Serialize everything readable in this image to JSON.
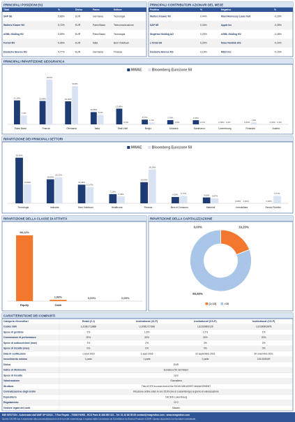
{
  "top_positions": {
    "title": "PRINCIPALI POSIZIONI (%)",
    "columns": [
      "Titoli",
      "%",
      "Divisa",
      "Paese",
      "Settore"
    ],
    "rows": [
      [
        "SAP SE",
        "5,86%",
        "EUR",
        "Germania",
        "Tecnologia"
      ],
      [
        "Wolters Kluwer NV",
        "5,72%",
        "EUR",
        "Paesi Bassi",
        "Telecomunicazione"
      ],
      [
        "ASML Holding NV",
        "5,59%",
        "EUR",
        "Paesi Bassi",
        "Tecnologia"
      ],
      [
        "Ferrari NV",
        "5,06%",
        "EUR",
        "Italia",
        "Beni Voluttuari"
      ],
      [
        "Deutsche Boerse AG",
        "4,77%",
        "EUR",
        "Germania",
        "Finanza"
      ]
    ]
  },
  "contributors": {
    "title": "PRINCIPALI CONTRIBUTORI AZIONARI DEL MESE",
    "columns": [
      "Positivo",
      "%",
      "Negativo",
      "%"
    ],
    "rows": [
      [
        "Wolters Kluwer NV",
        "0,44%",
        "Moet Hennessy Louis Vuit",
        "-0,29%"
      ],
      [
        "SAP SE",
        "0,33%",
        "Apple Inc",
        "-0,28%"
      ],
      [
        "Siegfried Holding AG",
        "0,20%",
        "ASML Holding NV",
        "-0,28%"
      ],
      [
        "L'Oréal SA",
        "0,20%",
        "Novo Nordisk A/S",
        "-0,20%"
      ],
      [
        "Deutsche Boerse AG",
        "0,19%",
        "MSCI Inc",
        "-0,15%"
      ]
    ]
  },
  "chart_data": [
    {
      "type": "bar",
      "title": "PRINCIPALI RIPARTIZIONE GEOGRAFICA",
      "categories": [
        "Paesi Bassi",
        "Francia",
        "Germania",
        "Italia",
        "Stati Uniti",
        "Belgio",
        "Svizzera",
        "Danimarca",
        "Luxembourg",
        "Finlandia",
        "Austria"
      ],
      "series": [
        {
          "name": "MWAE",
          "color": "#1f3b73",
          "values": [
            21.18,
            20.68,
            20.36,
            10.85,
            13.88,
            4.17,
            3.76,
            3.65,
            0,
            0,
            0
          ],
          "value_labels": [
            "21,18%",
            "20,68%",
            "20,36%",
            "10,85%",
            "13,88%",
            "4,17%",
            "3,76%",
            "3,65%",
            "0,00%",
            "0,00%",
            "0,00%"
          ]
        },
        {
          "name": "Bloomberg Eurozone 50",
          "color": "#dae3f3",
          "values": [
            7.9,
            39.5,
            33.8,
            8.4,
            0,
            1.7,
            0,
            0,
            0,
            1.8,
            0
          ],
          "value_labels": [
            "7,9%",
            "39,5%",
            "33,8%",
            "8,4%",
            "0,0%",
            "1,7%",
            "0,0%",
            "0,0%",
            "0,0%",
            "1,8%",
            "0,0%"
          ]
        }
      ],
      "ylim": [
        0,
        42
      ]
    },
    {
      "type": "bar",
      "title": "RIPARTIZIONE DEI PRINCIPALI SETTORI",
      "categories": [
        "Tecnologia",
        "Industria",
        "Beni Voluttuari",
        "Healthcare",
        "Finanza",
        "Beni di Consumo",
        "Materiali",
        "Immobiliare",
        "Servizi Pubblici"
      ],
      "series": [
        {
          "name": "MWAE",
          "color": "#1f3b73",
          "values": [
            35.46,
            18.65,
            14.48,
            7.16,
            16.43,
            4.93,
            4.56,
            0,
            0
          ],
          "value_labels": [
            "35,46%",
            "18,65%",
            "14,48%",
            "7,16%",
            "16,43%",
            "4,93%",
            "4,56%",
            "0,00%",
            "0,00%"
          ]
        },
        {
          "name": "Bloomberg Eurozone 50",
          "color": "#dae3f3",
          "values": [
            14.59,
            20.12,
            12.67,
            5.4,
            26.29,
            5.77,
            3.87,
            0,
            5.77
          ],
          "value_labels": [
            "14,59%",
            "20,12%",
            "12,67%",
            "5,40%",
            "26,29%",
            "5,77%",
            "3,87%",
            "0,00%",
            "5,77%"
          ]
        }
      ],
      "ylim": [
        0,
        38
      ]
    },
    {
      "type": "bar",
      "title": "RIPARTIZIONE DELLA CLASSE DI ATTIVITÀ",
      "categories": [
        "Equity",
        "Cash",
        null,
        null
      ],
      "values": [
        98.12,
        1.88,
        0,
        0
      ],
      "value_labels": [
        "98,12%",
        "1,88%",
        "0,00%",
        "0,00%"
      ],
      "color": "#f4772e",
      "ylim": [
        0,
        100
      ]
    },
    {
      "type": "pie",
      "title": "RIPARTIZIONE DELLA CAPITALIZZAZIONE",
      "categories": [
        null,
        "[1;10]",
        ">10"
      ],
      "values": [
        0,
        19.2,
        80.8
      ],
      "value_labels": [
        "0,00%",
        "19,20%",
        "80,80%"
      ],
      "colors": [
        "#7f7f7f",
        "#f4772e",
        "#a9c6e8"
      ]
    }
  ],
  "characteristics": {
    "title": "CARATTERISTICHE DEI COMPARTI",
    "row_labels": [
      "Categoria d'investitori",
      "Codice ISIN",
      "Spese di gestione",
      "Commissioni di performance",
      "Spese di sottoscrizione (max)",
      "Spese di riscatto (max)",
      "Data di costituzione",
      "Investimento minimo",
      "Divisa",
      "Indice di riferimento",
      "Spese di riscatto",
      "Valorizzazione",
      "Struttura",
      "Centralizzazione degli ordini",
      "Depositario",
      "Regolamento",
      "Gestore legale dei conti"
    ],
    "classes": [
      {
        "name": "Retail (C-I)",
        "values": [
          "LU1981713888",
          "2%",
          "20%",
          "3%",
          "0%",
          "1 aout 2016",
          "1 parte"
        ]
      },
      {
        "name": "Institutional (CI-P)",
        "values": [
          "LU1981717368",
          "1,5%",
          "20%",
          "2%",
          "0%",
          "1 aout 2016",
          "1 parte"
        ]
      },
      {
        "name": "Institutional (CS-P)",
        "values": [
          "LU2330803126",
          "2,2%",
          "20%",
          "3%",
          "0%",
          "22 septembre 2021",
          "1 parte"
        ]
      },
      {
        "name": "Institutional (CS-P)",
        "values": [
          "LU2330803878",
          "1%",
          "20%",
          "2%",
          "0%",
          "30 novembre 2021",
          "125.000EUR"
        ]
      }
    ],
    "shared": [
      "EUR",
      "Eurostoxx 50 net Return",
      "zero",
      "Giornaliera",
      "This UCITS is a sub-fund of the SICAV MW ASSET MANAGEMENT",
      "Ricezione ordine entro le ore 15:00 (ora di Lussemburgo) al giorno di valorizzazione",
      "CACEIS Luxembourg",
      "G+2",
      "Mazars"
    ]
  },
  "footer": {
    "line1": "MW GESTION - Autorizzato dall'AMF GP 92024 - 7 Rue Royale - 75008 PARIS - RCS Paris B 388 555 321 - Tel: 01 42 86 55 65 contact@mwgestion.com - www.mwgestion.com",
    "line2": "Questo OICVM non è autorizzato alla commercializzazione al di fuori del Lussemburgo e regolato dalla Commission de Surveillance du Secteur Financier (CSSF). Questo documento non ha valore contrattuale."
  }
}
